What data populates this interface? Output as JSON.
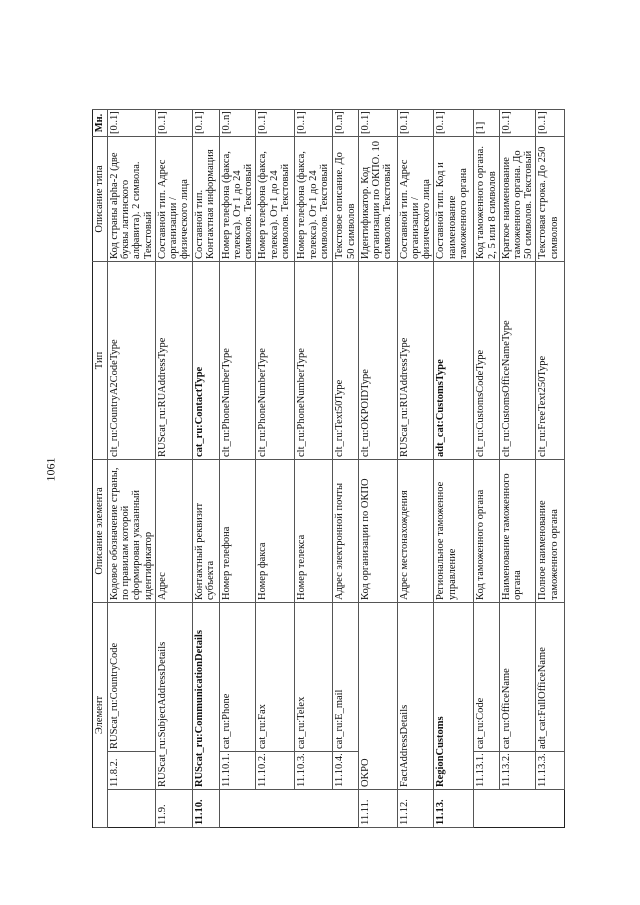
{
  "page_number": "1061",
  "table": {
    "headers": {
      "element": "Элемент",
      "element_description": "Описание элемента",
      "type": "Тип",
      "type_description": "Описание типа",
      "multiplicity": "Мн."
    },
    "rows": [
      {
        "num": "",
        "sub": "11.8.2.",
        "element": "RUScat_ru:CountryCode",
        "description": "Кодовое обозначение страны, по правилам которой сформирован указанный идентификатор",
        "type": "clt_ru:CountryA2CodeType",
        "type_description": "Код страны alpha-2 (две буквы латинского алфавита). 2 символа. Текстовый",
        "multiplicity": "[0..1]"
      },
      {
        "num": "11.9.",
        "sub": "",
        "element": "RUScat_ru:SubjectAddressDetails",
        "description": "Адрес",
        "type": "RUScat_ru:RUAddressType",
        "type_description": "Составной тип. Адрес организации / физического лица",
        "multiplicity": "[0..1]"
      },
      {
        "num": "11.10.",
        "sub": "",
        "element": "RUScat_ru:CommunicationDetails",
        "bold": true,
        "description": "Контактный реквизит субъекта",
        "type": "cat_ru:ContactType",
        "type_bold": true,
        "type_description": "Составной тип. Контактная информация",
        "multiplicity": "[0..1]"
      },
      {
        "num": "",
        "sub": "11.10.1.",
        "element": "cat_ru:Phone",
        "description": "Номер телефона",
        "type": "clt_ru:PhoneNumberType",
        "type_description": "Номер телефона (факса, телекса). От 1 до 24 символов. Текстовый",
        "multiplicity": "[0..n]"
      },
      {
        "num": "",
        "sub": "11.10.2.",
        "element": "cat_ru:Fax",
        "description": "Номер факса",
        "type": "clt_ru:PhoneNumberType",
        "type_description": "Номер телефона (факса, телекса). От 1 до 24 символов. Текстовый",
        "multiplicity": "[0..1]"
      },
      {
        "num": "",
        "sub": "11.10.3.",
        "element": "cat_ru:Telex",
        "description": "Номер телекса",
        "type": "clt_ru:PhoneNumberType",
        "type_description": "Номер телефона (факса, телекса). От 1 до 24 символов. Текстовый",
        "multiplicity": "[0..1]"
      },
      {
        "num": "",
        "sub": "11.10.4.",
        "element": "cat_ru:E_mail",
        "description": "Адрес электронной почты",
        "type": "clt_ru:Text50Type",
        "type_description": "Текстовое описание. До 50 символов",
        "multiplicity": "[0..n]"
      },
      {
        "num": "11.11.",
        "sub": "",
        "element": "OKPO",
        "description": "Код организации по ОКПО",
        "type": "clt_ru:OKPOIDType",
        "type_description": "Идентификатор. Код организации по ОКПО. 10 символов. Текстовый",
        "multiplicity": "[0..1]"
      },
      {
        "num": "11.12.",
        "sub": "",
        "element": "FactAddressDetails",
        "description": "Адрес местонахождения",
        "type": "RUScat_ru:RUAddressType",
        "type_description": "Составной тип. Адрес организации / физического лица",
        "multiplicity": "[0..1]"
      },
      {
        "num": "11.13.",
        "sub": "",
        "element": "RegionCustoms",
        "bold": true,
        "description": "Региональное таможенное управление",
        "type": "adt_cat:CustomsType",
        "type_bold": true,
        "type_description": "Составной тип. Код и наименование таможенного органа",
        "multiplicity": "[0..1]"
      },
      {
        "num": "",
        "sub": "11.13.1.",
        "element": "cat_ru:Code",
        "description": "Код таможенного органа",
        "type": "clt_ru:CustomsCodeType",
        "type_description": "Код таможенного органа. 2, 5 или 8 символов",
        "multiplicity": "[1]"
      },
      {
        "num": "",
        "sub": "11.13.2.",
        "element": "cat_ru:OfficeName",
        "description": "Наименование таможенного органа",
        "type": "clt_ru:CustomsOfficeNameType",
        "type_description": "Краткое наименование таможенного органа. До 50 символов. Текстовый",
        "multiplicity": "[0..1]"
      },
      {
        "num": "",
        "sub": "11.13.3.",
        "element": "adt_cat:FullOfficeName",
        "description": "Полное наименование таможенного органа",
        "type": "clt_ru:FreeText250Type",
        "type_description": "Текстовая строка. До 250 символов",
        "multiplicity": "[0..1]"
      }
    ]
  }
}
